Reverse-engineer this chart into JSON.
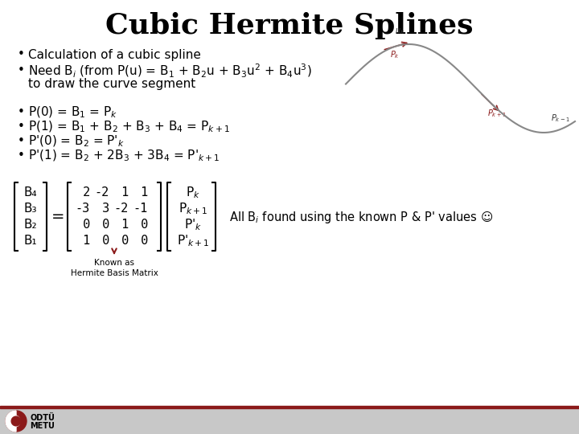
{
  "title": "Cubic Hermite Splines",
  "title_fontsize": 26,
  "bg_color": "#ffffff",
  "text_color": "#000000",
  "footer_bar_color": "#8b1a1a",
  "footer_bg_color": "#d0d0d0",
  "fs_body": 11,
  "fs_mat": 11,
  "mat_left": [
    "B₄",
    "B₃",
    "B₂",
    "B₁"
  ],
  "mat_nums": [
    [
      " 2",
      "-2",
      " 1",
      " 1"
    ],
    [
      "-3",
      " 3",
      "-2",
      "-1"
    ],
    [
      " 0",
      " 0",
      " 1",
      " 0"
    ],
    [
      " 1",
      " 0",
      " 0",
      " 0"
    ]
  ],
  "mat_right": [
    "P$_k$",
    "P$_{k+1}$",
    "P'$_k$",
    "P'$_{k+1}$"
  ],
  "note_text": "Known as\nHermite Basis Matrix",
  "side_text": "All B$_i$ found using the known P & P' values ☺",
  "logo_odtu": "ODTÜ",
  "logo_metu": "METU"
}
